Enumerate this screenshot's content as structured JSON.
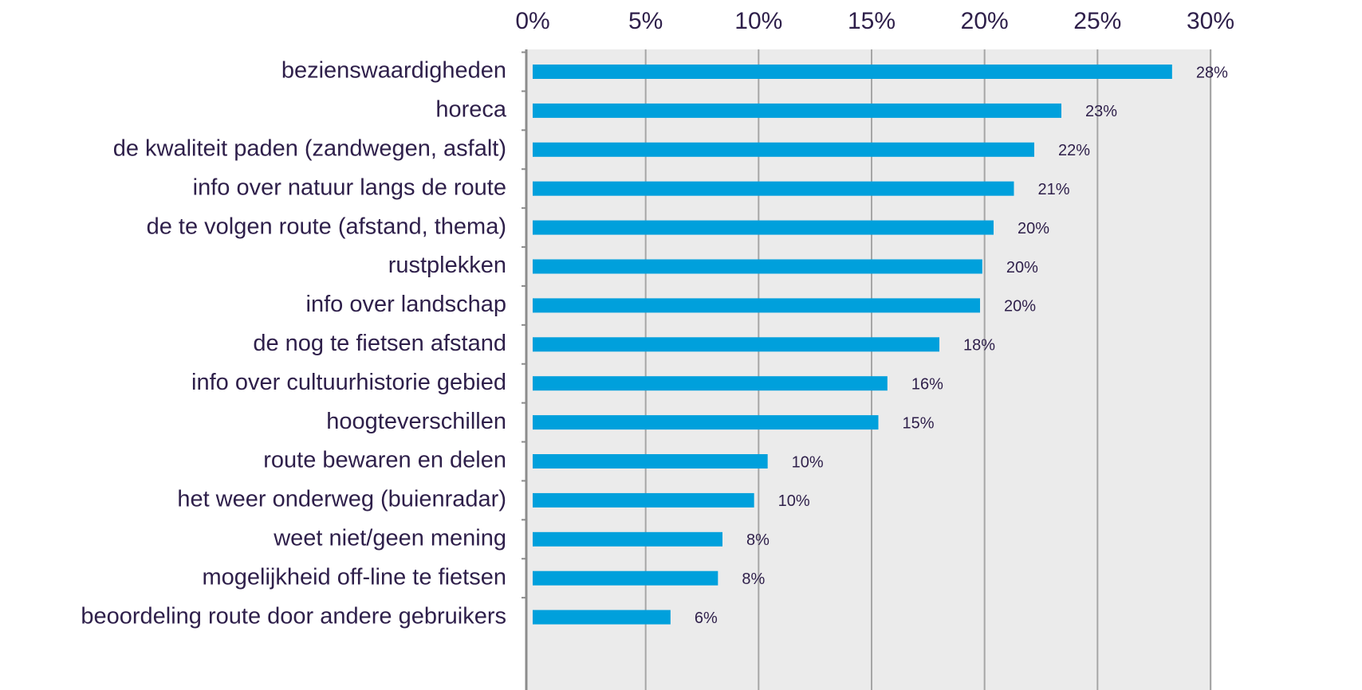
{
  "chart_data": {
    "type": "bar",
    "orientation": "horizontal",
    "categories": [
      "bezienswaardigheden",
      "horeca",
      "de kwaliteit paden (zandwegen, asfalt)",
      "info over natuur langs de route",
      "de te volgen route (afstand, thema)",
      "rustplekken",
      "info over landschap",
      "de nog te fietsen afstand",
      "info over cultuurhistorie gebied",
      "hoogteverschillen",
      "route bewaren en delen",
      "het weer onderweg (buienradar)",
      "weet niet/geen mening",
      "mogelijkheid off-line te fietsen",
      "beoordeling route door andere gebruikers"
    ],
    "values": [
      28.3,
      23.4,
      22.2,
      21.3,
      20.4,
      19.9,
      19.8,
      18.0,
      15.7,
      15.3,
      10.4,
      9.8,
      8.4,
      8.2,
      6.1
    ],
    "value_labels": [
      "28%",
      "23%",
      "22%",
      "21%",
      "20%",
      "20%",
      "20%",
      "18%",
      "16%",
      "15%",
      "10%",
      "10%",
      "8%",
      "8%",
      "6%"
    ],
    "color": "#00a0dc",
    "xlim": [
      0,
      30
    ],
    "xticks": [
      {
        "value": 0,
        "label": "0%"
      },
      {
        "value": 5,
        "label": "5%"
      },
      {
        "value": 10,
        "label": "10%"
      },
      {
        "value": 15,
        "label": "15%"
      },
      {
        "value": 20,
        "label": "20%"
      },
      {
        "value": 25,
        "label": "25%"
      },
      {
        "value": 30,
        "label": "30%"
      }
    ],
    "grid": true
  }
}
